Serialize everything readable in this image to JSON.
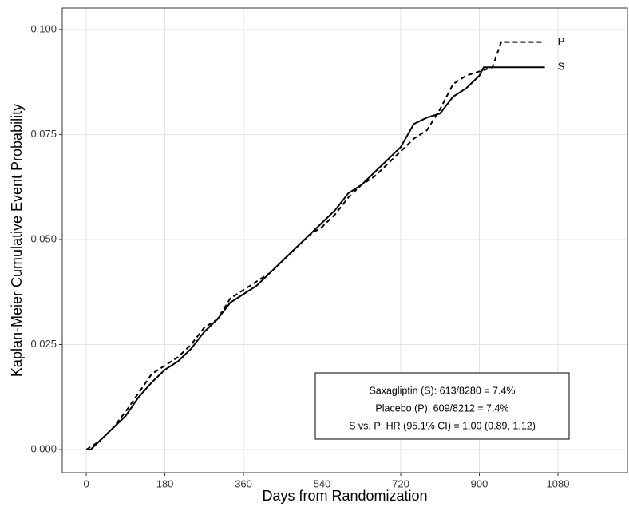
{
  "chart_data": {
    "type": "line",
    "xlabel": "Days from Randomization",
    "ylabel": "Kaplan-Meier Cumulative Event Probability",
    "xlim": [
      -55,
      1239
    ],
    "xticks": [
      0,
      180,
      360,
      540,
      720,
      900,
      1080
    ],
    "ylim": [
      -0.0055,
      0.1051
    ],
    "yticks": [
      {
        "value": 0,
        "label": "0.000"
      },
      {
        "value": 0.025,
        "label": "0.025"
      },
      {
        "value": 0.05,
        "label": "0.050"
      },
      {
        "value": 0.075,
        "label": "0.075"
      },
      {
        "value": 0.1,
        "label": "0.100"
      }
    ],
    "grid": true,
    "series": [
      {
        "name": "S",
        "color": "#000000",
        "linestyle": "solid",
        "x": [
          0,
          10,
          30,
          60,
          90,
          120,
          150,
          180,
          210,
          240,
          270,
          300,
          330,
          360,
          390,
          420,
          450,
          480,
          510,
          540,
          570,
          600,
          630,
          660,
          690,
          720,
          750,
          780,
          810,
          840,
          870,
          900,
          910,
          1050
        ],
        "values": [
          0,
          0,
          0.002,
          0.005,
          0.008,
          0.0125,
          0.016,
          0.019,
          0.021,
          0.024,
          0.028,
          0.031,
          0.035,
          0.037,
          0.039,
          0.042,
          0.045,
          0.048,
          0.051,
          0.054,
          0.057,
          0.061,
          0.063,
          0.066,
          0.069,
          0.072,
          0.0775,
          0.079,
          0.08,
          0.084,
          0.086,
          0.089,
          0.091,
          0.091
        ]
      },
      {
        "name": "P",
        "color": "#000000",
        "linestyle": "dashed",
        "x": [
          0,
          30,
          60,
          90,
          120,
          150,
          180,
          210,
          240,
          270,
          300,
          330,
          360,
          390,
          420,
          450,
          480,
          510,
          540,
          570,
          600,
          630,
          660,
          690,
          720,
          750,
          780,
          810,
          840,
          870,
          900,
          930,
          950,
          1050
        ],
        "values": [
          0,
          0.002,
          0.005,
          0.009,
          0.0135,
          0.018,
          0.02,
          0.022,
          0.025,
          0.029,
          0.031,
          0.036,
          0.038,
          0.04,
          0.042,
          0.045,
          0.048,
          0.051,
          0.053,
          0.056,
          0.06,
          0.063,
          0.065,
          0.068,
          0.071,
          0.074,
          0.076,
          0.081,
          0.087,
          0.089,
          0.09,
          0.091,
          0.097,
          0.097
        ]
      }
    ],
    "annotation": [
      "Saxagliptin (S): 613/8280 = 7.4%",
      "Placebo (P): 609/8212 = 7.4%",
      "S vs. P: HR (95.1% CI) = 1.00 (0.89, 1.12)"
    ]
  }
}
